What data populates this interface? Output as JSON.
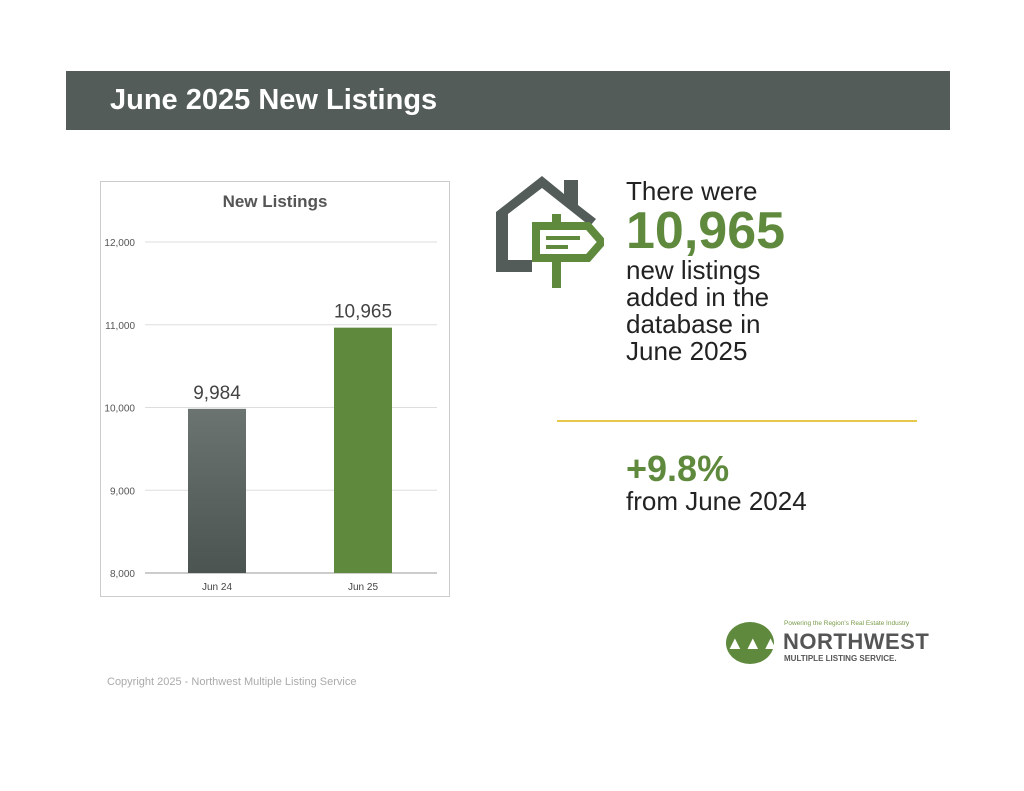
{
  "header": {
    "title": "June 2025 New Listings"
  },
  "colors": {
    "bar_prev": "#606865",
    "bar_curr": "#5f8a3e",
    "accent": "#5f8a3e",
    "divider": "#e8c84a"
  },
  "chart_data": {
    "type": "bar",
    "title": "New Listings",
    "categories": [
      "Jun 24",
      "Jun 25"
    ],
    "values": [
      9984,
      10965
    ],
    "data_labels": [
      "9,984",
      "10,965"
    ],
    "yticks": [
      "8,000",
      "9,000",
      "10,000",
      "11,000",
      "12,000"
    ],
    "ytick_values": [
      8000,
      9000,
      10000,
      11000,
      12000
    ],
    "ylim": [
      8000,
      12000
    ],
    "xlabel": "",
    "ylabel": "",
    "grid": true
  },
  "summary": {
    "line1": "There were",
    "value": "10,965",
    "line2": "new listings",
    "line3": "added in the",
    "line4": "database in",
    "line5": "June 2025"
  },
  "change": {
    "value": "+9.8%",
    "label": "from June 2024"
  },
  "logo": {
    "tagline": "Powering the Region's Real Estate Industry",
    "name": "NORTHWEST",
    "sub": "MULTIPLE LISTING SERVICE."
  },
  "footer": {
    "copyright": "Copyright 2025 - Northwest Multiple Listing Service"
  }
}
